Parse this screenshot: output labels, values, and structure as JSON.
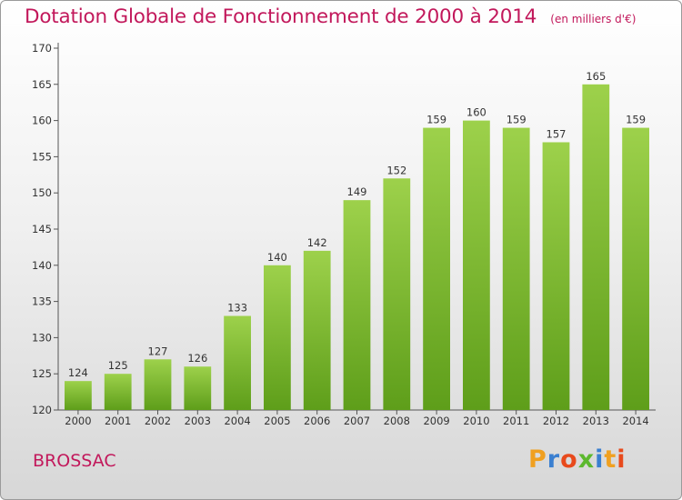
{
  "header": {
    "title": "Dotation Globale de Fonctionnement de 2000 à 2014",
    "subtitle": "(en milliers d'€)"
  },
  "footer": {
    "commune": "BROSSAC",
    "logo_letters": [
      "P",
      "r",
      "o",
      "x",
      "i",
      "t",
      "i"
    ],
    "logo_colors": [
      "#f0a020",
      "#3a7fd0",
      "#e84a1c",
      "#5cb82e",
      "#3a7fd0",
      "#f0a020",
      "#e84a1c"
    ]
  },
  "chart_data": {
    "type": "bar",
    "categories": [
      "2000",
      "2001",
      "2002",
      "2003",
      "2004",
      "2005",
      "2006",
      "2007",
      "2008",
      "2009",
      "2010",
      "2011",
      "2012",
      "2013",
      "2014"
    ],
    "values": [
      124,
      125,
      127,
      126,
      133,
      140,
      142,
      149,
      152,
      159,
      160,
      159,
      157,
      165,
      159
    ],
    "data_labels": [
      "124",
      "125",
      "127",
      "126",
      "133",
      "140",
      "142",
      "149",
      "152",
      "159",
      "160",
      "159",
      "157",
      "165",
      "159"
    ],
    "yticks": [
      120,
      125,
      130,
      135,
      140,
      145,
      150,
      155,
      160,
      165,
      170
    ],
    "ytick_labels": [
      "120",
      "125",
      "130",
      "135",
      "140",
      "145",
      "150",
      "155",
      "160",
      "165",
      "170"
    ],
    "ylim": [
      120,
      170
    ],
    "grid": false,
    "bar_color_top": "#9dd14b",
    "bar_color_bottom": "#5e9e1a"
  }
}
